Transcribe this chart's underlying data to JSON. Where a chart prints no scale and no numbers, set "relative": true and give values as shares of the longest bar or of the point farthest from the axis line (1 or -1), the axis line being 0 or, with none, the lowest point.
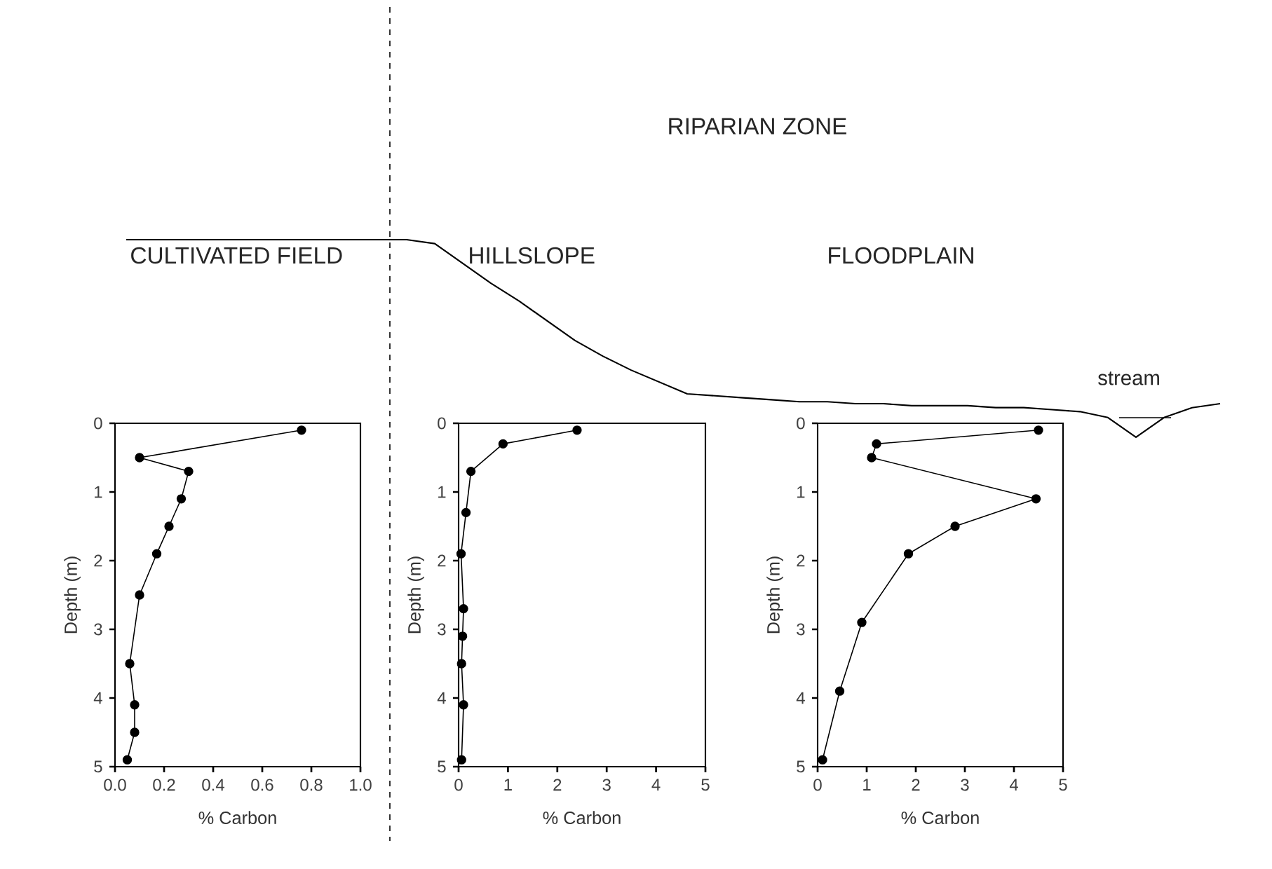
{
  "chart_data": [
    {
      "type": "line",
      "relative": true,
      "marker": "none",
      "line_style": "solid",
      "annotations": [
        "RIPARIAN ZONE",
        "stream"
      ],
      "categories": [
        null,
        null,
        null,
        null,
        null,
        null,
        null,
        null,
        null,
        null,
        null,
        null,
        null,
        null,
        null,
        null,
        null,
        null,
        null,
        null,
        null,
        null,
        null,
        null,
        null,
        null,
        null,
        null,
        null,
        null,
        null,
        null,
        null,
        null,
        null,
        null,
        null,
        null,
        null,
        null
      ],
      "series": [
        {
          "color": "#000000",
          "values": [
            1,
            1,
            1,
            1,
            1,
            1,
            1,
            1,
            1,
            1,
            1,
            0.98,
            0.88,
            0.78,
            0.69,
            0.59,
            0.49,
            0.41,
            0.34,
            0.28,
            0.22,
            0.21,
            0.2,
            0.19,
            0.18,
            0.18,
            0.17,
            0.17,
            0.16,
            0.16,
            0.16,
            0.15,
            0.15,
            0.14,
            0.13,
            0.1,
            0,
            0.1,
            0.15,
            0.17
          ]
        }
      ]
    },
    {
      "type": "line",
      "title": "CULTIVATED FIELD",
      "xlabel": "% Carbon",
      "ylabel": "Depth (m)",
      "marker": "circle",
      "line_style": "solid",
      "xlim": [
        0,
        1
      ],
      "xticks": [
        {
          "value": 0,
          "label": "0.0"
        },
        {
          "value": 0.2,
          "label": "0.2"
        },
        {
          "value": 0.4,
          "label": "0.4"
        },
        {
          "value": 0.6,
          "label": "0.6"
        },
        {
          "value": 0.8,
          "label": "0.8"
        },
        {
          "value": 1,
          "label": "1.0"
        }
      ],
      "ylim": [
        5,
        0
      ],
      "yticks": [
        0,
        1,
        2,
        3,
        4,
        5
      ],
      "series": [
        {
          "color": "#000000",
          "x": [
            0.76,
            0.1,
            0.3,
            0.27,
            0.22,
            0.17,
            0.1,
            0.06,
            0.08,
            0.08,
            0.05
          ],
          "values": [
            0.1,
            0.5,
            0.7,
            1.1,
            1.5,
            1.9,
            2.5,
            3.5,
            4.1,
            4.5,
            4.9
          ]
        }
      ]
    },
    {
      "type": "line",
      "title": "HILLSLOPE",
      "xlabel": "% Carbon",
      "ylabel": "Depth (m)",
      "marker": "circle",
      "line_style": "solid",
      "xlim": [
        0,
        5
      ],
      "xticks": [
        0,
        1,
        2,
        3,
        4,
        5
      ],
      "ylim": [
        5,
        0
      ],
      "yticks": [
        0,
        1,
        2,
        3,
        4,
        5
      ],
      "series": [
        {
          "color": "#000000",
          "x": [
            2.4,
            0.9,
            0.25,
            0.15,
            0.05,
            0.1,
            0.08,
            0.06,
            0.1,
            0.06
          ],
          "values": [
            0.1,
            0.3,
            0.7,
            1.3,
            1.9,
            2.7,
            3.1,
            3.5,
            4.1,
            4.9
          ]
        }
      ]
    },
    {
      "type": "line",
      "title": "FLOODPLAIN",
      "xlabel": "% Carbon",
      "ylabel": "Depth (m)",
      "marker": "circle",
      "line_style": "solid",
      "xlim": [
        0,
        5
      ],
      "xticks": [
        0,
        1,
        2,
        3,
        4,
        5
      ],
      "ylim": [
        5,
        0
      ],
      "yticks": [
        0,
        1,
        2,
        3,
        4,
        5
      ],
      "series": [
        {
          "color": "#000000",
          "x": [
            4.5,
            1.2,
            1.1,
            4.45,
            2.8,
            1.85,
            0.9,
            0.45,
            0.1
          ],
          "values": [
            0.1,
            0.3,
            0.5,
            1.1,
            1.5,
            1.9,
            2.9,
            3.9,
            4.9
          ]
        }
      ]
    }
  ]
}
